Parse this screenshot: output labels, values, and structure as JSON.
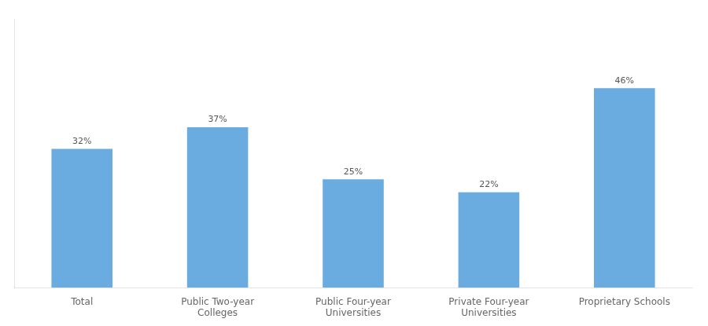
{
  "chart_data": {
    "type": "bar",
    "categories": [
      "Total",
      "Public Two-year\nColleges",
      "Public Four-year\nUniversities",
      "Private Four-year\nUniversities",
      "Proprietary Schools"
    ],
    "values": [
      32,
      37,
      25,
      22,
      46
    ],
    "value_labels": [
      "32%",
      "37%",
      "25%",
      "22%",
      "46%"
    ],
    "data_labels": true,
    "color": "#6aace0",
    "ylim": [
      0,
      62
    ],
    "grid": false,
    "tick_labels": "x"
  }
}
